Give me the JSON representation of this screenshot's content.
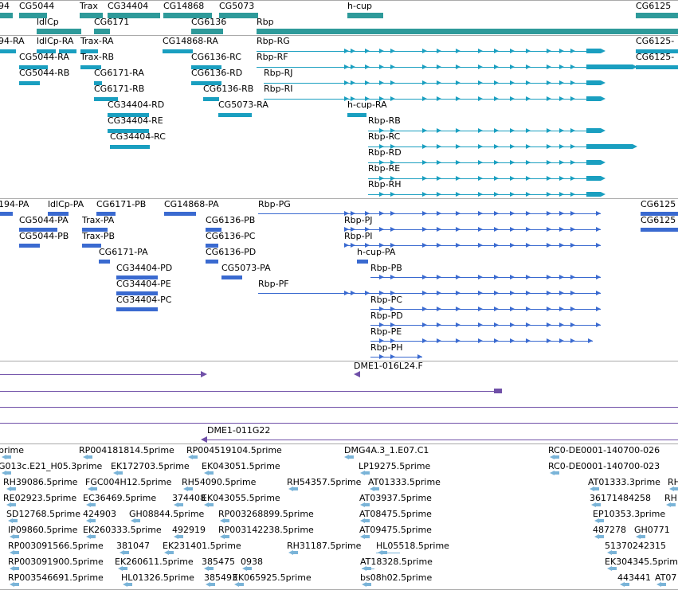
{
  "colors": {
    "teal": "#2e9a9a",
    "cyan": "#1a9fc0",
    "blue": "#3a6ad0",
    "purple": "#7050a8",
    "est": "#7ab4d8",
    "separator": "#aaaaaa"
  },
  "tracks": {
    "genes": {
      "labels": [
        "94",
        "CG5044",
        "Trax",
        "CG34404",
        "CG14868",
        "CG5073",
        "h-cup",
        "CG6125",
        "ldlCp",
        "CG6171",
        "CG6136",
        "Rbp"
      ]
    },
    "transcripts": {
      "labels": [
        "94-RA",
        "ldlCp-RA",
        "Trax-RA",
        "CG14868-RA",
        "Rbp-RG",
        "CG6125-",
        "CG5044-RA",
        "Trax-RB",
        "CG6136-RC",
        "Rbp-RF",
        "CG6125-",
        "CG5044-RB",
        "CG6171-RA",
        "CG6136-RD",
        "Rbp-RJ",
        "CG6171-RB",
        "CG6136-RB",
        "Rbp-RI",
        "CG34404-RD",
        "CG5073-RA",
        "h-cup-RA",
        "CG34404-RE",
        "Rbp-RB",
        "CG34404-RC",
        "Rbp-RC",
        "Rbp-RD",
        "Rbp-RE",
        "Rbp-RH"
      ]
    },
    "proteins": {
      "labels": [
        "194-PA",
        "ldlCp-PA",
        "CG6171-PB",
        "CG14868-PA",
        "Rbp-PG",
        "CG6125",
        "CG5044-PA",
        "Trax-PA",
        "CG6136-PB",
        "Rbp-PJ",
        "CG6125",
        "CG5044-PB",
        "Trax-PB",
        "CG6136-PC",
        "Rbp-PI",
        "CG6171-PA",
        "CG6136-PD",
        "h-cup-PA",
        "CG34404-PD",
        "CG5073-PA",
        "Rbp-PB",
        "CG34404-PE",
        "Rbp-PF",
        "CG34404-PC",
        "Rbp-PC",
        "Rbp-PD",
        "Rbp-PE",
        "Rbp-PH"
      ]
    },
    "clones": {
      "labels": [
        "DME1-016L24.F",
        "DME1-011G22"
      ]
    },
    "ests": {
      "labels": [
        "prime",
        "RP004181814.5prime",
        "RP004519104.5prime",
        "DMG4A.3_1.E07.C1",
        "RC0-DE0001-140700-026",
        "G013c.E21_H05.3prime",
        "EK172703.5prime",
        "EK043051.5prime",
        "LP19275.5prime",
        "RC0-DE0001-140700-023",
        "RH39086.5prime",
        "FGC004H12.5prime",
        "RH54090.5prime",
        "RH54357.5prime",
        "AT01333.5prime",
        "AT01333.3prime",
        "RH",
        "RE02923.5prime",
        "EC36469.5prime",
        "374408",
        "EK043055.5prime",
        "AT03937.5prime",
        "36171484258",
        "RH",
        "SD12768.5prime",
        "424903",
        "GH08844.5prime",
        "RP003268899.5prime",
        "AT08475.5prime",
        "EP10353.3prime",
        "IP09860.5prime",
        "EK260333.5prime",
        "492919",
        "RP003142238.5prime",
        "AT09475.5prime",
        "487278",
        "GH0771",
        "RP003091566.5prime",
        "381047",
        "EK231401.5prime",
        "RH31187.5prime",
        "HL05518.5prime",
        "51370242315",
        "RP003091900.5prime",
        "EK260611.5prime",
        "385475",
        "0938",
        "AT18328.5prime",
        "EK304345.5prime",
        "RP003546691.5prime",
        "HL01326.5prime",
        "385493",
        "EK065925.5prime",
        "bs08h02.5prime",
        "443441",
        "AT07"
      ]
    }
  }
}
